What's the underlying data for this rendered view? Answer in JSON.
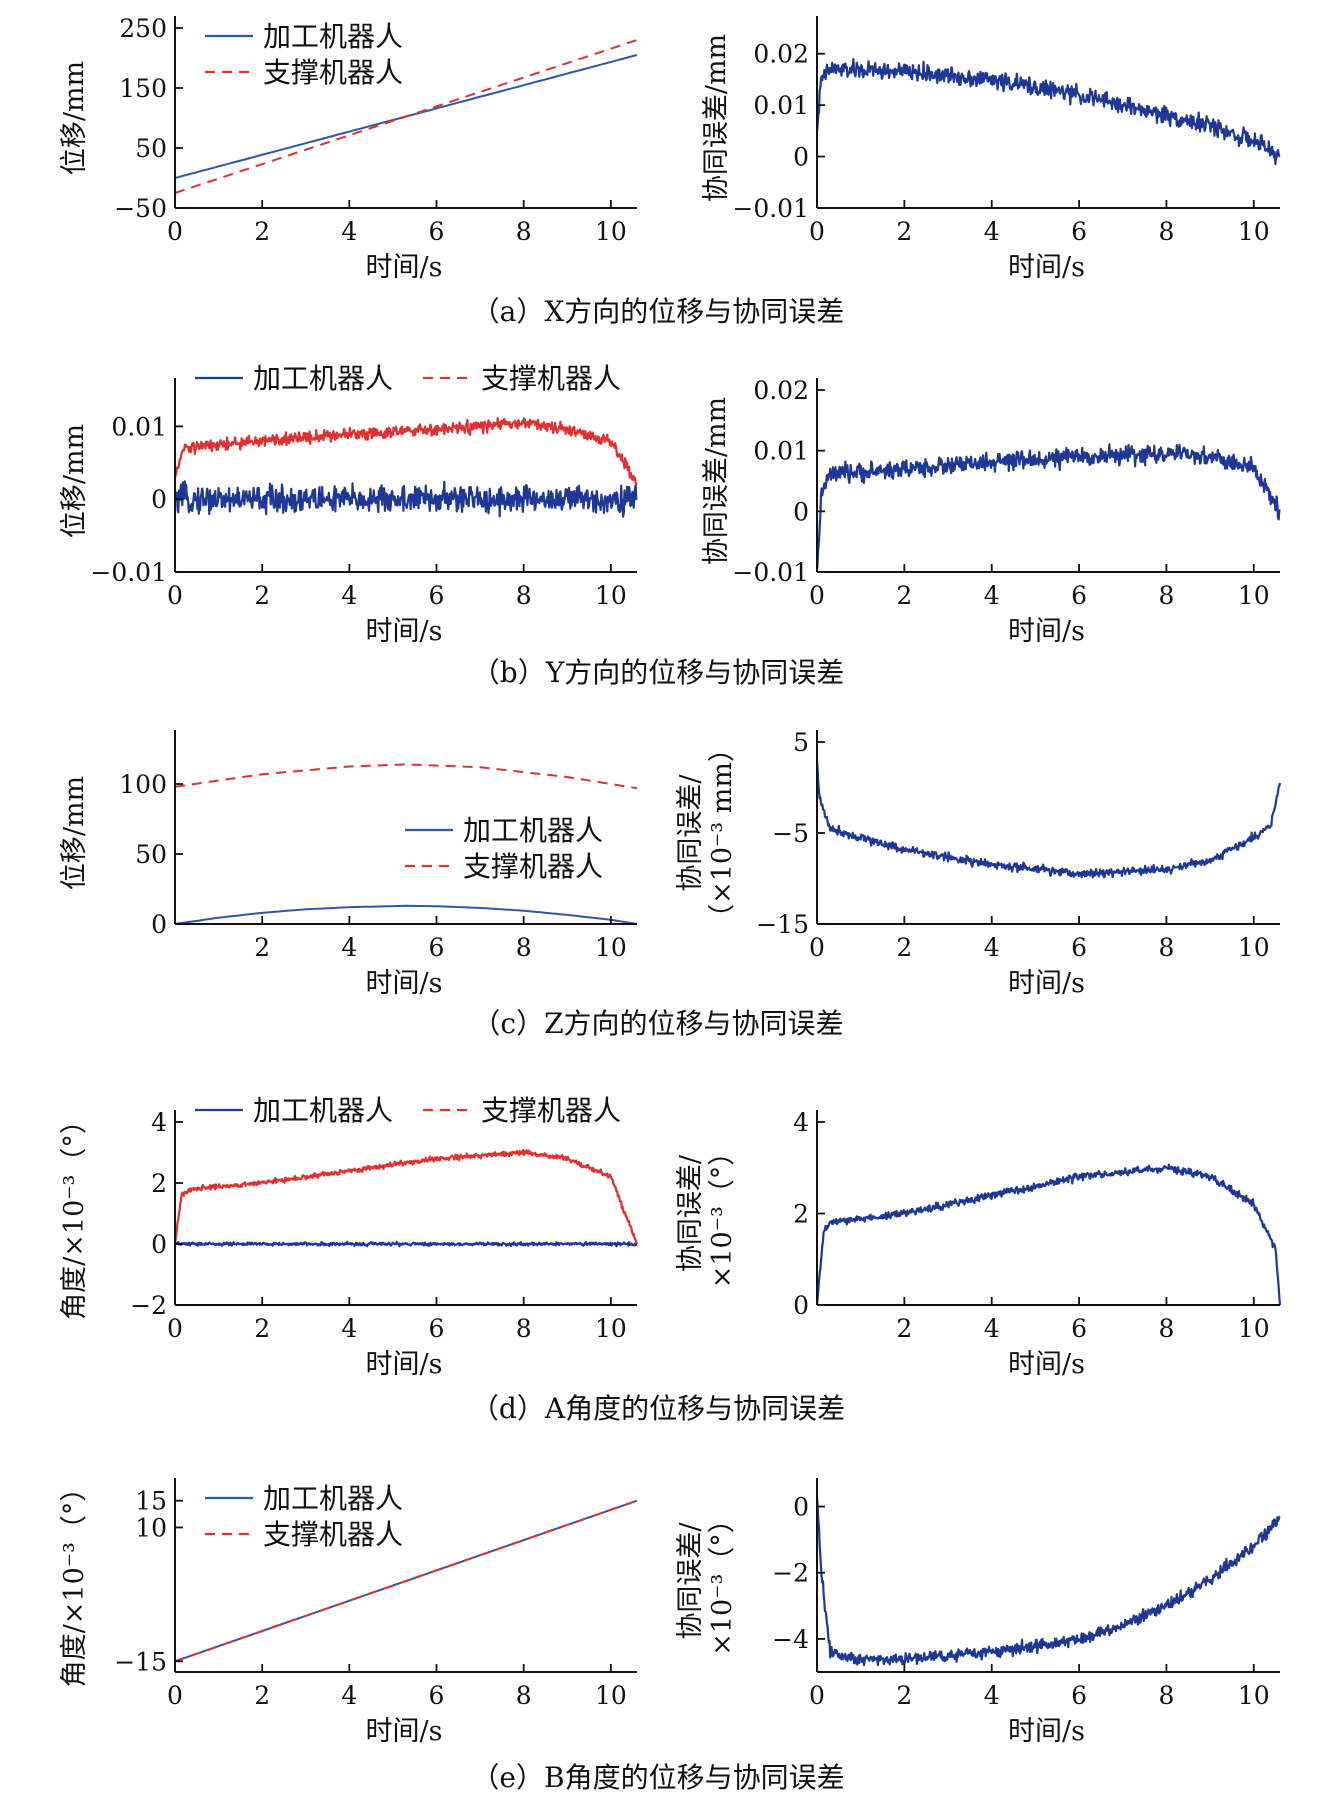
{
  "colors": {
    "processing": "#2d57a8",
    "support": "#e03030",
    "error": "#1f3896",
    "axis": "#111111"
  },
  "captions": [
    "（a）X方向的位移与协同误差",
    "（b）Y方向的位移与协同误差",
    "（c）Z方向的位移与协同误差",
    "（d）A角度的位移与协同误差",
    "（e）B角度的位移与协同误差"
  ],
  "chart_data": [
    {
      "id": "a-left",
      "type": "line",
      "xlabel": "时间/s",
      "ylabel": [
        "位移/mm"
      ],
      "xlim": [
        0,
        10.6
      ],
      "ylim": [
        -50,
        250
      ],
      "xticks": [
        0,
        2,
        4,
        6,
        8,
        10
      ],
      "xtick_labels": [
        "0",
        "2",
        "4",
        "6",
        "8",
        "10"
      ],
      "yticks": [
        -50,
        50,
        150,
        250
      ],
      "ytick_labels": [
        "−50",
        "50",
        "150",
        "250"
      ],
      "legend": "top-left-stacked",
      "series": [
        {
          "name": "加工机器人",
          "style": "solid",
          "color": "processing",
          "x": [
            0,
            10.6
          ],
          "y": [
            0,
            205
          ]
        },
        {
          "name": "支撑机器人",
          "style": "dashed",
          "color": "support",
          "x": [
            0,
            10.6
          ],
          "y": [
            -25,
            230
          ]
        }
      ]
    },
    {
      "id": "a-right",
      "type": "line",
      "xlabel": "时间/s",
      "ylabel": [
        "协同误差/mm"
      ],
      "xlim": [
        0,
        10.6
      ],
      "ylim": [
        -0.01,
        0.025
      ],
      "xticks": [
        0,
        2,
        4,
        6,
        8,
        10
      ],
      "xtick_labels": [
        "0",
        "2",
        "4",
        "6",
        "8",
        "10"
      ],
      "yticks": [
        -0.01,
        0,
        0.01,
        0.02
      ],
      "ytick_labels": [
        "−0.01",
        "0",
        "0.01",
        "0.02"
      ],
      "series": [
        {
          "style": "noisy",
          "color": "error",
          "noise": 0.0025,
          "x": [
            0,
            0.1,
            0.3,
            2,
            4,
            6,
            8,
            9,
            10,
            10.6
          ],
          "y": [
            0.005,
            0.015,
            0.017,
            0.0165,
            0.015,
            0.012,
            0.008,
            0.006,
            0.003,
            0.0
          ]
        }
      ]
    },
    {
      "id": "b-left",
      "type": "line",
      "xlabel": "时间/s",
      "ylabel": [
        "位移/mm"
      ],
      "xlim": [
        0,
        10.6
      ],
      "ylim": [
        -0.01,
        0.015
      ],
      "xticks": [
        0,
        2,
        4,
        6,
        8,
        10
      ],
      "xtick_labels": [
        "0",
        "2",
        "4",
        "6",
        "8",
        "10"
      ],
      "yticks": [
        -0.01,
        0,
        0.01
      ],
      "ytick_labels": [
        "−0.01",
        "0",
        "0.01"
      ],
      "legend": "top-inline",
      "series": [
        {
          "name": "加工机器人",
          "style": "noisy",
          "color": "error",
          "noise": 0.0028,
          "x": [
            0,
            10.6
          ],
          "y": [
            0.0,
            0.0
          ]
        },
        {
          "name": "支撑机器人",
          "style": "noisy",
          "color": "support",
          "noise": 0.0012,
          "x": [
            0,
            0.2,
            2,
            4,
            6,
            8,
            9,
            10,
            10.6
          ],
          "y": [
            0.003,
            0.007,
            0.008,
            0.009,
            0.0095,
            0.0105,
            0.0095,
            0.008,
            0.002
          ]
        }
      ]
    },
    {
      "id": "b-right",
      "type": "line",
      "xlabel": "时间/s",
      "ylabel": [
        "协同误差/mm"
      ],
      "xlim": [
        0,
        10.6
      ],
      "ylim": [
        -0.01,
        0.02
      ],
      "xticks": [
        0,
        2,
        4,
        6,
        8,
        10
      ],
      "xtick_labels": [
        "0",
        "2",
        "4",
        "6",
        "8",
        "10"
      ],
      "yticks": [
        -0.01,
        0,
        0.01,
        0.02
      ],
      "ytick_labels": [
        "−0.01",
        "0",
        "0.01",
        "0.02"
      ],
      "series": [
        {
          "style": "noisy",
          "color": "error",
          "noise": 0.0022,
          "x": [
            0,
            0.1,
            0.3,
            2,
            4,
            6,
            8,
            9,
            10,
            10.6
          ],
          "y": [
            -0.01,
            0.003,
            0.006,
            0.007,
            0.008,
            0.009,
            0.0095,
            0.009,
            0.007,
            0.0
          ]
        }
      ]
    },
    {
      "id": "c-left",
      "type": "line",
      "xlabel": "时间/s",
      "ylabel": [
        "位移/mm"
      ],
      "xlim": [
        0,
        10.6
      ],
      "ylim": [
        0,
        130
      ],
      "xticks": [
        2,
        4,
        6,
        8,
        10
      ],
      "xtick_labels": [
        "2",
        "4",
        "6",
        "8",
        "10"
      ],
      "yticks": [
        0,
        50,
        100
      ],
      "ytick_labels": [
        "0",
        "50",
        "100"
      ],
      "legend": "middle-right-stacked",
      "series": [
        {
          "name": "加工机器人",
          "style": "solid",
          "color": "processing",
          "x": [
            0,
            1,
            2,
            3,
            4,
            5.3,
            6,
            7,
            8,
            9,
            10,
            10.6
          ],
          "y": [
            0,
            4.5,
            8,
            10.5,
            12,
            13,
            12.7,
            11.5,
            9.5,
            6.5,
            3,
            0
          ]
        },
        {
          "name": "支撑机器人",
          "style": "dashed",
          "color": "support",
          "x": [
            0,
            2,
            4,
            5.3,
            7,
            9,
            10.6
          ],
          "y": [
            98,
            107,
            112.5,
            114,
            112,
            105,
            97
          ]
        }
      ]
    },
    {
      "id": "c-right",
      "type": "line",
      "xlabel": "时间/s",
      "ylabel": [
        "协同误差/",
        "（×10⁻³ mm）"
      ],
      "xlim": [
        0,
        10.6
      ],
      "ylim": [
        -15,
        5
      ],
      "xticks": [
        0,
        2,
        4,
        6,
        8,
        10
      ],
      "xtick_labels": [
        "0",
        "2",
        "4",
        "6",
        "8",
        "10"
      ],
      "yticks": [
        -15,
        -5,
        5
      ],
      "ytick_labels": [
        "−15",
        "−5",
        "5"
      ],
      "series": [
        {
          "style": "noisy",
          "color": "error",
          "noise": 0.7,
          "x": [
            0,
            0.05,
            0.3,
            1,
            2,
            4,
            6,
            8,
            9,
            10,
            10.4,
            10.6
          ],
          "y": [
            3,
            -1,
            -4.5,
            -5.5,
            -6.8,
            -8.5,
            -9.5,
            -9,
            -8,
            -5.5,
            -4,
            0.5
          ]
        }
      ]
    },
    {
      "id": "d-left",
      "type": "line",
      "xlabel": "时间/s",
      "ylabel": [
        "角度/×10⁻³（°）"
      ],
      "xlim": [
        0,
        10.6
      ],
      "ylim": [
        -2,
        4
      ],
      "xticks": [
        0,
        2,
        4,
        6,
        8,
        10
      ],
      "xtick_labels": [
        "0",
        "2",
        "4",
        "6",
        "8",
        "10"
      ],
      "yticks": [
        -2,
        0,
        2,
        4
      ],
      "ytick_labels": [
        "−2",
        "0",
        "2",
        "4"
      ],
      "legend": "top-inline",
      "series": [
        {
          "name": "加工机器人",
          "style": "noisy",
          "color": "error",
          "noise": 0.08,
          "x": [
            0,
            10.6
          ],
          "y": [
            0,
            0
          ]
        },
        {
          "name": "支撑机器人",
          "style": "noisy",
          "color": "support",
          "noise": 0.12,
          "x": [
            0,
            0.15,
            0.3,
            2,
            4,
            6,
            8,
            9,
            10,
            10.6
          ],
          "y": [
            0,
            1.6,
            1.8,
            2.0,
            2.4,
            2.8,
            3.0,
            2.8,
            2.2,
            0
          ]
        }
      ]
    },
    {
      "id": "d-right",
      "type": "line",
      "xlabel": "时间/s",
      "ylabel": [
        "协同误差/",
        "×10⁻³（°）"
      ],
      "xlim": [
        0,
        10.6
      ],
      "ylim": [
        0,
        4
      ],
      "xticks": [
        2,
        4,
        6,
        8,
        10
      ],
      "xtick_labels": [
        "2",
        "4",
        "6",
        "8",
        "10"
      ],
      "yticks": [
        0,
        2,
        4
      ],
      "ytick_labels": [
        "0",
        "2",
        "4"
      ],
      "series": [
        {
          "style": "noisy",
          "color": "error",
          "noise": 0.12,
          "x": [
            0,
            0.15,
            0.3,
            2,
            4,
            6,
            8,
            9,
            10,
            10.5,
            10.6
          ],
          "y": [
            0,
            1.6,
            1.8,
            2.0,
            2.4,
            2.8,
            3.0,
            2.8,
            2.2,
            1.2,
            0
          ]
        }
      ]
    },
    {
      "id": "e-left",
      "type": "line",
      "xlabel": "时间/s",
      "ylabel": [
        "角度/×10⁻³（°）"
      ],
      "xlim": [
        0,
        10.6
      ],
      "ylim": [
        -17,
        17
      ],
      "xticks": [
        0,
        2,
        4,
        6,
        8,
        10
      ],
      "xtick_labels": [
        "0",
        "2",
        "4",
        "6",
        "8",
        "10"
      ],
      "yticks": [
        -15,
        10,
        15
      ],
      "ytick_labels": [
        "−15",
        "10",
        "15"
      ],
      "legend": "top-left-stacked",
      "series": [
        {
          "name": "加工机器人",
          "style": "solid",
          "color": "processing",
          "x": [
            0,
            10.6
          ],
          "y": [
            -15,
            15
          ]
        },
        {
          "name": "支撑机器人",
          "style": "dashed",
          "color": "support",
          "x": [
            0,
            10.6
          ],
          "y": [
            -15,
            15
          ]
        }
      ]
    },
    {
      "id": "e-right",
      "type": "line",
      "xlabel": "时间/s",
      "ylabel": [
        "协同误差/",
        "×10⁻³（°）"
      ],
      "xlim": [
        0,
        10.6
      ],
      "ylim": [
        -5,
        0.5
      ],
      "xticks": [
        0,
        2,
        4,
        6,
        8,
        10
      ],
      "xtick_labels": [
        "0",
        "2",
        "4",
        "6",
        "8",
        "10"
      ],
      "yticks": [
        -4,
        -2,
        0
      ],
      "ytick_labels": [
        "−4",
        "−2",
        "0"
      ],
      "series": [
        {
          "style": "noisy",
          "color": "error",
          "noise": 0.28,
          "x": [
            0,
            0.1,
            0.3,
            1,
            2,
            4,
            6,
            7,
            8,
            9,
            10,
            10.6
          ],
          "y": [
            0.3,
            -2,
            -4.4,
            -4.6,
            -4.6,
            -4.4,
            -4.0,
            -3.6,
            -3.0,
            -2.2,
            -1.2,
            -0.3
          ]
        }
      ]
    }
  ]
}
